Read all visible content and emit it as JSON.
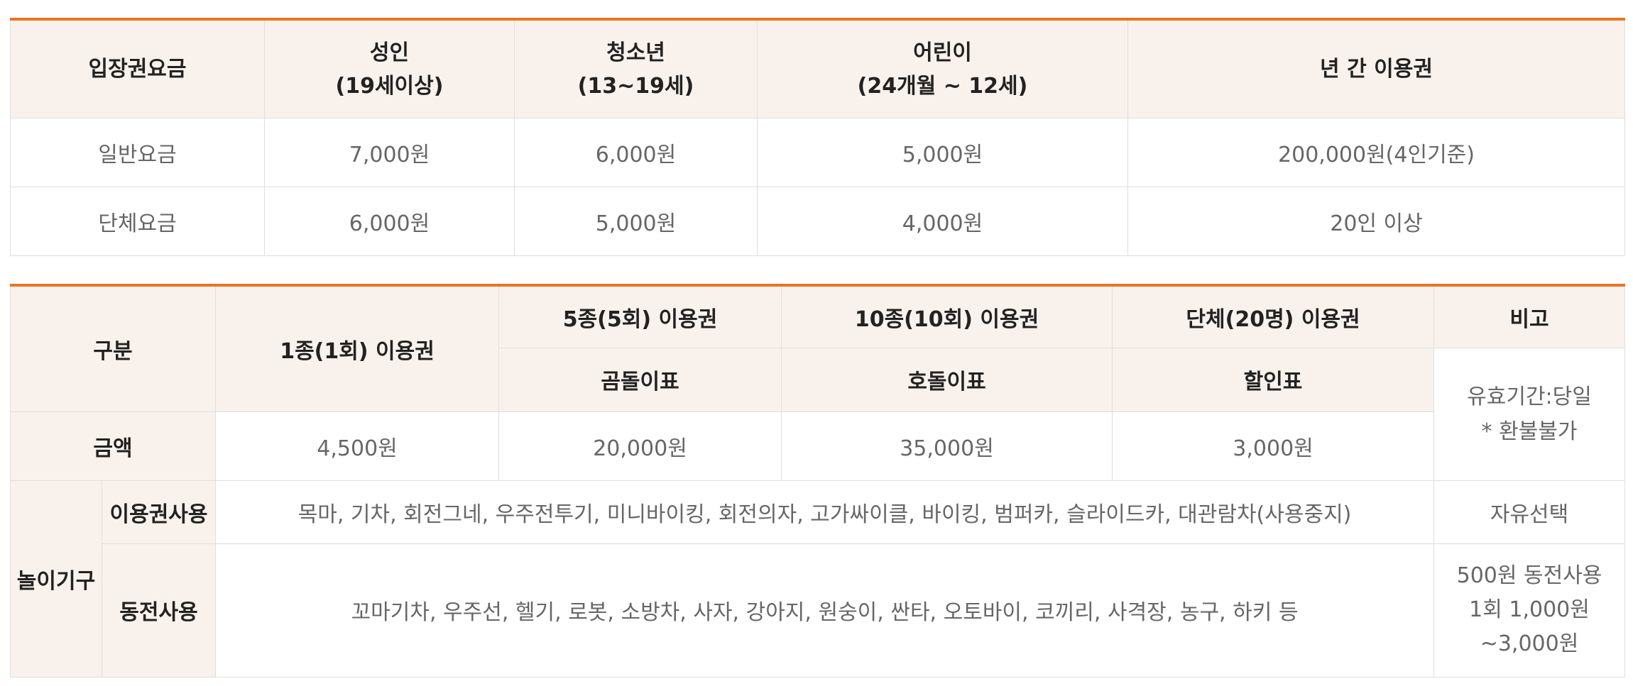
{
  "admission": {
    "header": {
      "label": "입장권요금",
      "adult_line1": "성인",
      "adult_line2": "(19세이상)",
      "youth_line1": "청소년",
      "youth_line2": "(13~19세)",
      "child_line1": "어린이",
      "child_line2": "(24개월 ~ 12세)",
      "annual": "년 간 이용권"
    },
    "rows": [
      {
        "label": "일반요금",
        "adult": "7,000원",
        "youth": "6,000원",
        "child": "5,000원",
        "annual": "200,000원(4인기준)"
      },
      {
        "label": "단체요금",
        "adult": "6,000원",
        "youth": "5,000원",
        "child": "4,000원",
        "annual": "20인 이상"
      }
    ]
  },
  "rides": {
    "header": {
      "category": "구분",
      "single": "1종(1회) 이용권",
      "five": "5종(5회) 이용권",
      "ten": "10종(10회) 이용권",
      "group": "단체(20명) 이용권",
      "remarks": "비고"
    },
    "subheader": {
      "five": "곰돌이표",
      "ten": "호돌이표",
      "group": "할인표"
    },
    "remarks_validity": {
      "line1": "유효기간:당일",
      "line2": "* 환불불가"
    },
    "price": {
      "label": "금액",
      "single": "4,500원",
      "five": "20,000원",
      "ten": "35,000원",
      "group": "3,000원"
    },
    "rides_label": "놀이기구",
    "ticket_use": {
      "label": "이용권사용",
      "list": "목마, 기차, 회전그네, 우주전투기, 미니바이킹, 회전의자, 고가싸이클, 바이킹, 범퍼카, 슬라이드카, 대관람차(사용중지)",
      "remark": "자유선택"
    },
    "coin_use": {
      "label": "동전사용",
      "list": "꼬마기차, 우주선, 헬기, 로봇, 소방차, 사자, 강아지, 원숭이, 싼타, 오토바이, 코끼리, 사격장, 농구, 하키 등",
      "remark_line1": "500원 동전사용",
      "remark_line2": "1회 1,000원",
      "remark_line3": "~3,000원"
    }
  }
}
